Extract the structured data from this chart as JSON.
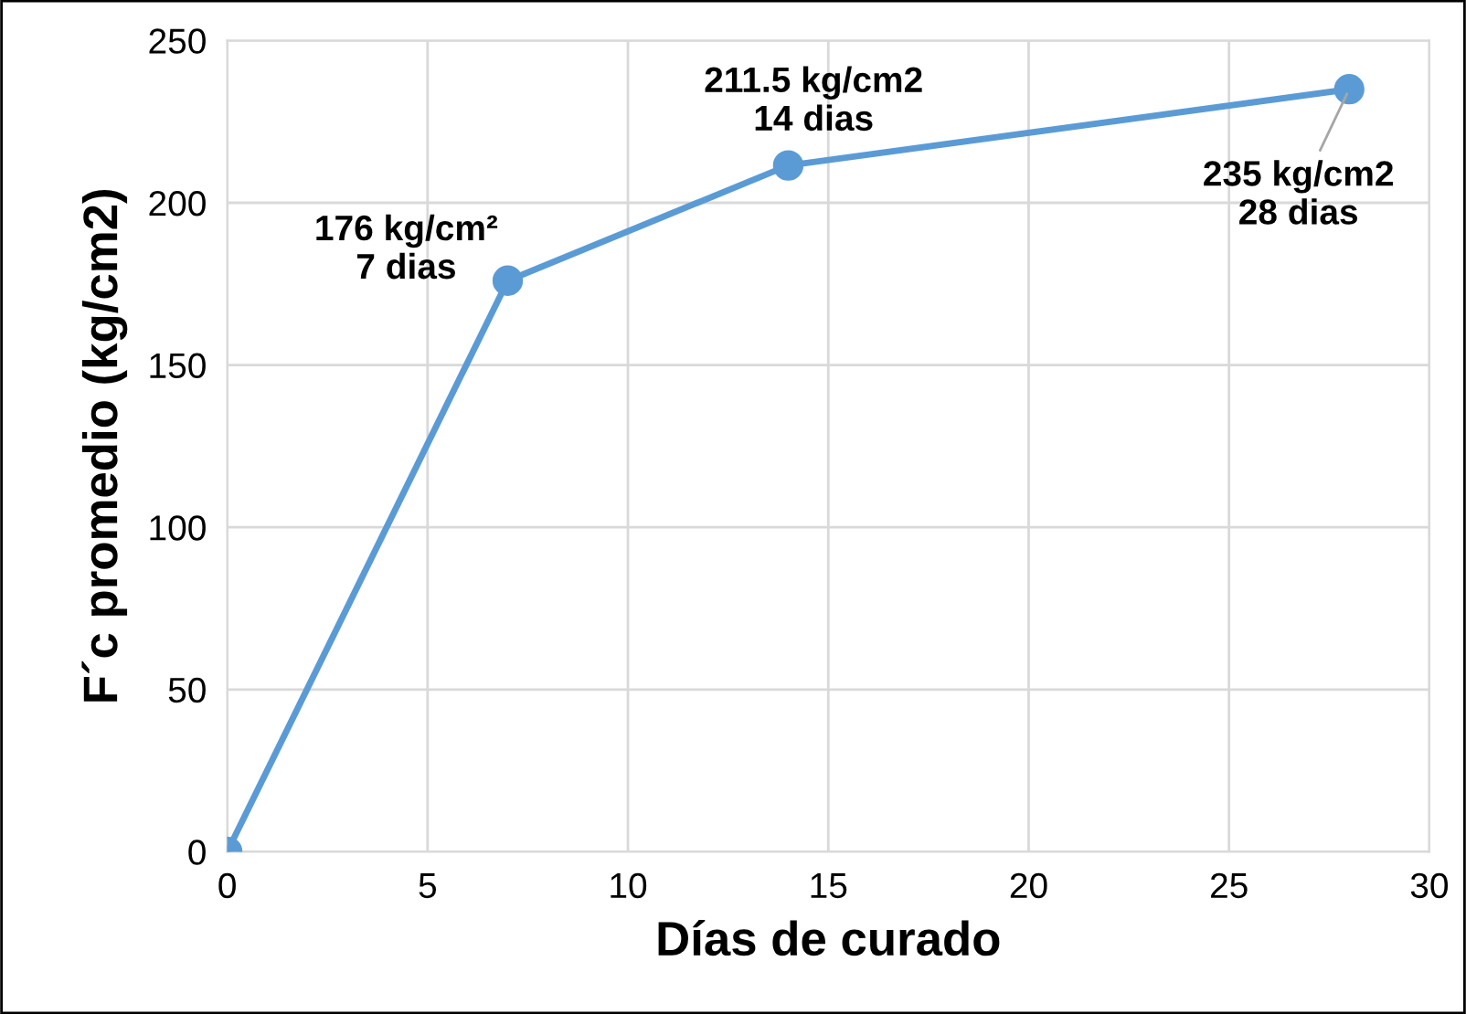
{
  "chart_data": {
    "type": "line",
    "xlabel": "Días de curado",
    "ylabel": "F´c promedio (kg/cm2)",
    "x": [
      0,
      7,
      14,
      28
    ],
    "series": [
      {
        "color": "#5b9bd5",
        "values": [
          0,
          176,
          211.5,
          235
        ]
      }
    ],
    "xlim": [
      0,
      30
    ],
    "xticks": [
      0,
      5,
      10,
      15,
      20,
      25,
      30
    ],
    "ylim": [
      0,
      250
    ],
    "yticks": [
      0,
      50,
      100,
      150,
      200,
      250
    ],
    "grid": true,
    "marker": "circle",
    "line_style": "solid",
    "annotations": [
      {
        "text": "176 kg/cm²\n7 dias",
        "x": 7,
        "y": 176
      },
      {
        "text": "211.5 kg/cm2\n14 dias",
        "x": 14,
        "y": 211.5
      },
      {
        "text": "235 kg/cm2\n28 dias",
        "x": 28,
        "y": 235
      }
    ]
  }
}
